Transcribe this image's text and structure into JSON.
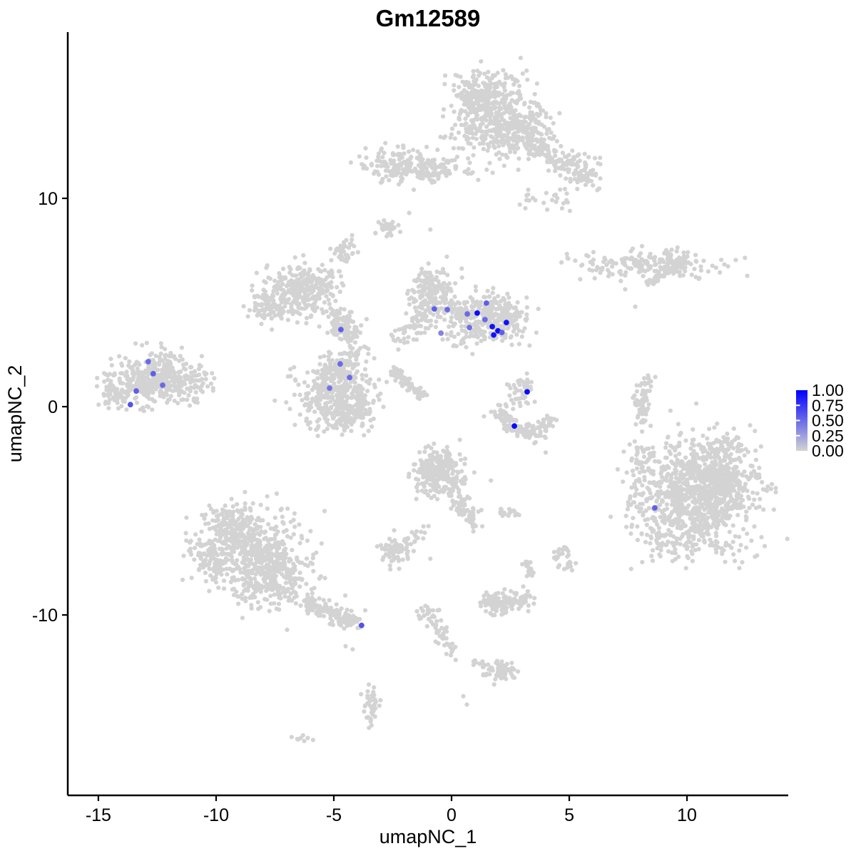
{
  "chart": {
    "title": "Gm12589",
    "xlabel": "umapNC_1",
    "ylabel": "umapNC_2",
    "x_ticks": [
      -15,
      -10,
      -5,
      0,
      5,
      10
    ],
    "y_ticks": [
      -10,
      0,
      10
    ],
    "x_range": [
      -16.3,
      14.3
    ],
    "y_range": [
      -18.66,
      17.98
    ],
    "grid": false,
    "legend_position": "right",
    "colors": {
      "point_low": "#D3D3D3",
      "point_high": "#0000FF",
      "axis": "#000000",
      "background": "#FFFFFF"
    },
    "legend": {
      "labels": [
        "1.00",
        "0.75",
        "0.50",
        "0.25",
        "0.00"
      ],
      "tick_values": [
        0.25,
        0.5,
        0.75
      ],
      "low_color": "#D3D3D3",
      "high_color": "#0000FF"
    },
    "chart_data": {
      "type": "scatter",
      "description": "UMAP feature plot of Gm12589 expression; grey background cells generated from cluster blobs, expressing cells listed explicitly with expression value 0-1",
      "seed": 42,
      "clusters": [
        {
          "name": "top-main",
          "type": "gauss",
          "x": 1.8,
          "y": 14.0,
          "sx": 1.0,
          "sy": 0.95,
          "n": 400
        },
        {
          "name": "top-main-upper",
          "type": "gauss",
          "x": 1.1,
          "y": 14.9,
          "sx": 0.55,
          "sy": 0.5,
          "n": 130
        },
        {
          "name": "top-main-lower",
          "type": "gauss",
          "x": 2.9,
          "y": 13.1,
          "sx": 0.65,
          "sy": 0.55,
          "n": 130
        },
        {
          "name": "top-arm",
          "type": "line",
          "x1": 3.3,
          "y1": 12.7,
          "x2": 4.8,
          "y2": 11.7,
          "s": 0.3,
          "n": 90
        },
        {
          "name": "top-arm-clump",
          "type": "gauss",
          "x": 5.5,
          "y": 11.3,
          "sx": 0.45,
          "sy": 0.45,
          "n": 80
        },
        {
          "name": "top-arm-trail",
          "type": "gauss",
          "x": 4.6,
          "y": 10.0,
          "sx": 0.35,
          "sy": 0.3,
          "n": 16
        },
        {
          "name": "top-arm-trail2",
          "type": "gauss",
          "x": 3.3,
          "y": 10.0,
          "sx": 0.2,
          "sy": 0.2,
          "n": 8
        },
        {
          "name": "topleft",
          "type": "gauss",
          "x": -2.0,
          "y": 11.6,
          "sx": 0.95,
          "sy": 0.4,
          "n": 170
        },
        {
          "name": "topleft-tail",
          "type": "gauss",
          "x": -0.5,
          "y": 11.25,
          "sx": 0.45,
          "sy": 0.22,
          "n": 35
        },
        {
          "name": "topleft-bridge",
          "type": "gauss",
          "x": 0.5,
          "y": 11.4,
          "sx": 0.4,
          "sy": 0.2,
          "n": 10
        },
        {
          "name": "comma-blob",
          "type": "gauss",
          "x": -2.8,
          "y": 8.6,
          "sx": 0.28,
          "sy": 0.22,
          "n": 30
        },
        {
          "name": "small-blob-upperleft",
          "type": "gauss",
          "x": -4.6,
          "y": 7.4,
          "sx": 0.22,
          "sy": 0.33,
          "n": 45
        },
        {
          "name": "midleft",
          "type": "gauss",
          "x": -6.6,
          "y": 5.5,
          "sx": 0.8,
          "sy": 0.6,
          "n": 240
        },
        {
          "name": "midleft-arm-right",
          "type": "gauss",
          "x": -5.5,
          "y": 5.9,
          "sx": 0.45,
          "sy": 0.35,
          "n": 60
        },
        {
          "name": "midleft-arm-left",
          "type": "gauss",
          "x": -7.8,
          "y": 4.7,
          "sx": 0.45,
          "sy": 0.35,
          "n": 60
        },
        {
          "name": "branch",
          "type": "line",
          "x1": -5.0,
          "y1": 4.5,
          "x2": -4.0,
          "y2": 2.7,
          "s": 0.3,
          "n": 100
        },
        {
          "name": "branch-clump",
          "type": "gauss",
          "x": -4.5,
          "y": 3.9,
          "sx": 0.3,
          "sy": 0.3,
          "n": 45
        },
        {
          "name": "band-chain",
          "type": "line",
          "x1": -2.3,
          "y1": 3.3,
          "x2": -1.0,
          "y2": 4.5,
          "s": 0.25,
          "n": 60
        },
        {
          "name": "band-round",
          "type": "gauss",
          "x": -0.85,
          "y": 5.5,
          "sx": 0.45,
          "sy": 0.55,
          "n": 170
        },
        {
          "name": "band-dense",
          "type": "gauss",
          "x": 1.8,
          "y": 4.2,
          "sx": 0.7,
          "sy": 0.55,
          "n": 280
        },
        {
          "name": "band-bridge",
          "type": "gauss",
          "x": 0.4,
          "y": 4.5,
          "sx": 0.45,
          "sy": 0.35,
          "n": 70
        },
        {
          "name": "band-below",
          "type": "gauss",
          "x": 0.3,
          "y": 3.3,
          "sx": 0.6,
          "sy": 0.3,
          "n": 25
        },
        {
          "name": "diag-streak",
          "type": "line",
          "x1": -2.55,
          "y1": 1.85,
          "x2": -1.25,
          "y2": 0.45,
          "s": 0.13,
          "n": 90
        },
        {
          "name": "center-left",
          "type": "gauss",
          "x": -5.0,
          "y": 0.6,
          "sx": 0.8,
          "sy": 0.75,
          "n": 330
        },
        {
          "name": "center-left-sub",
          "type": "gauss",
          "x": -4.5,
          "y": -0.5,
          "sx": 0.5,
          "sy": 0.4,
          "n": 80
        },
        {
          "name": "center-left-top",
          "type": "gauss",
          "x": -4.8,
          "y": 1.8,
          "sx": 0.4,
          "sy": 0.3,
          "n": 50
        },
        {
          "name": "center-left-east",
          "type": "gauss",
          "x": -4.0,
          "y": 0.2,
          "sx": 0.4,
          "sy": 0.5,
          "n": 60
        },
        {
          "name": "small-upper-mid",
          "type": "gauss",
          "x": 3.0,
          "y": 0.8,
          "sx": 0.3,
          "sy": 0.35,
          "n": 45
        },
        {
          "name": "crescent-1",
          "type": "line",
          "x1": 1.95,
          "y1": -0.25,
          "x2": 2.7,
          "y2": -1.1,
          "s": 0.18,
          "n": 50
        },
        {
          "name": "crescent-2",
          "type": "line",
          "x1": 2.7,
          "y1": -1.1,
          "x2": 3.6,
          "y2": -1.2,
          "s": 0.18,
          "n": 45
        },
        {
          "name": "crescent-3",
          "type": "line",
          "x1": 3.6,
          "y1": -1.2,
          "x2": 4.35,
          "y2": -0.55,
          "s": 0.18,
          "n": 40
        },
        {
          "name": "crescent-sparse",
          "type": "gauss",
          "x": 2.2,
          "y": -0.1,
          "sx": 0.3,
          "sy": 0.25,
          "n": 10
        },
        {
          "name": "far-left-main",
          "type": "gauss",
          "x": -12.7,
          "y": 1.3,
          "sx": 0.95,
          "sy": 0.6,
          "n": 360
        },
        {
          "name": "far-left-east-sparse",
          "type": "gauss",
          "x": -10.9,
          "y": 1.1,
          "sx": 0.55,
          "sy": 0.45,
          "n": 50
        },
        {
          "name": "far-left-top-dots",
          "type": "gauss",
          "x": -12.0,
          "y": 2.5,
          "sx": 0.35,
          "sy": 0.25,
          "n": 14
        },
        {
          "name": "far-left-edge",
          "type": "gauss",
          "x": -14.2,
          "y": 0.6,
          "sx": 0.35,
          "sy": 0.3,
          "n": 40
        },
        {
          "name": "right-elongated",
          "type": "gauss",
          "x": 8.2,
          "y": 6.8,
          "sx": 1.5,
          "sy": 0.33,
          "n": 170
        },
        {
          "name": "right-elongated-clump",
          "type": "gauss",
          "x": 9.3,
          "y": 6.9,
          "sx": 0.4,
          "sy": 0.35,
          "n": 60
        },
        {
          "name": "right-elongated-arm",
          "type": "line",
          "x1": 8.3,
          "y1": 5.9,
          "x2": 8.9,
          "y2": 6.3,
          "s": 0.12,
          "n": 25
        },
        {
          "name": "right-crescent-1",
          "type": "line",
          "x1": 8.35,
          "y1": 1.35,
          "x2": 8.0,
          "y2": 0.2,
          "s": 0.15,
          "n": 35
        },
        {
          "name": "right-crescent-2",
          "type": "line",
          "x1": 8.0,
          "y1": 0.2,
          "x2": 8.15,
          "y2": -1.0,
          "s": 0.15,
          "n": 30
        },
        {
          "name": "right-crescent-dots",
          "type": "gauss",
          "x": 8.05,
          "y": -2.1,
          "sx": 0.2,
          "sy": 0.2,
          "n": 8
        },
        {
          "name": "right-main",
          "type": "gauss",
          "x": 10.6,
          "y": -4.4,
          "sx": 1.25,
          "sy": 1.3,
          "n": 820
        },
        {
          "name": "right-core",
          "type": "gauss",
          "x": 11.2,
          "y": -3.4,
          "sx": 0.75,
          "sy": 0.65,
          "n": 260
        },
        {
          "name": "right-top-arm",
          "type": "gauss",
          "x": 11.5,
          "y": -2.0,
          "sx": 0.6,
          "sy": 0.35,
          "n": 70
        },
        {
          "name": "right-west-sparse",
          "type": "gauss",
          "x": 8.4,
          "y": -3.8,
          "sx": 0.5,
          "sy": 1.0,
          "n": 80
        },
        {
          "name": "right-bottom-sparse",
          "type": "gauss",
          "x": 9.3,
          "y": -6.4,
          "sx": 0.6,
          "sy": 0.4,
          "n": 50
        },
        {
          "name": "botleft-body1",
          "type": "gauss",
          "x": -8.7,
          "y": -6.6,
          "sx": 1.05,
          "sy": 0.85,
          "n": 400
        },
        {
          "name": "botleft-body2",
          "type": "gauss",
          "x": -7.7,
          "y": -8.2,
          "sx": 0.95,
          "sy": 0.75,
          "n": 330
        },
        {
          "name": "botleft-top",
          "type": "gauss",
          "x": -9.4,
          "y": -5.6,
          "sx": 0.5,
          "sy": 0.4,
          "n": 80
        },
        {
          "name": "botleft-west",
          "type": "gauss",
          "x": -10.3,
          "y": -7.4,
          "sx": 0.45,
          "sy": 0.6,
          "n": 70
        },
        {
          "name": "botleft-tail",
          "type": "line",
          "x1": -6.2,
          "y1": -9.4,
          "x2": -4.05,
          "y2": -10.45,
          "s": 0.22,
          "n": 120
        },
        {
          "name": "botleft-tip",
          "type": "gauss",
          "x": -4.35,
          "y": -10.3,
          "sx": 0.18,
          "sy": 0.15,
          "n": 25
        },
        {
          "name": "pear-main",
          "type": "gauss",
          "x": -0.5,
          "y": -3.3,
          "sx": 0.55,
          "sy": 0.55,
          "n": 210
        },
        {
          "name": "pear-top",
          "type": "gauss",
          "x": -0.8,
          "y": -2.8,
          "sx": 0.4,
          "sy": 0.3,
          "n": 70
        },
        {
          "name": "pear-tail",
          "type": "line",
          "x1": 0.1,
          "y1": -4.2,
          "x2": 1.0,
          "y2": -5.6,
          "s": 0.2,
          "n": 60
        },
        {
          "name": "chain-sw",
          "type": "line",
          "x1": -1.1,
          "y1": -5.9,
          "x2": -2.1,
          "y2": -6.6,
          "s": 0.15,
          "n": 20
        },
        {
          "name": "chain-sw-blob",
          "type": "gauss",
          "x": -2.45,
          "y": -7.0,
          "sx": 0.35,
          "sy": 0.3,
          "n": 70
        },
        {
          "name": "small-pair-a",
          "type": "gauss",
          "x": 2.2,
          "y": -5.05,
          "sx": 0.15,
          "sy": 0.12,
          "n": 12
        },
        {
          "name": "small-pair-b",
          "type": "gauss",
          "x": 2.75,
          "y": -5.1,
          "sx": 0.12,
          "sy": 0.1,
          "n": 8
        },
        {
          "name": "small-east-1",
          "type": "gauss",
          "x": 4.65,
          "y": -7.0,
          "sx": 0.2,
          "sy": 0.18,
          "n": 18
        },
        {
          "name": "small-east-2",
          "type": "gauss",
          "x": 5.0,
          "y": -7.6,
          "sx": 0.18,
          "sy": 0.16,
          "n": 14
        },
        {
          "name": "vert-pair-1",
          "type": "gauss",
          "x": 3.2,
          "y": -7.5,
          "sx": 0.12,
          "sy": 0.14,
          "n": 10
        },
        {
          "name": "vert-pair-2",
          "type": "gauss",
          "x": 3.3,
          "y": -8.0,
          "sx": 0.12,
          "sy": 0.12,
          "n": 10
        },
        {
          "name": "bottom-mid",
          "type": "gauss",
          "x": 2.3,
          "y": -9.4,
          "sx": 0.45,
          "sy": 0.3,
          "n": 90
        },
        {
          "name": "bottom-mid-left",
          "type": "gauss",
          "x": 1.75,
          "y": -9.5,
          "sx": 0.25,
          "sy": 0.25,
          "n": 40
        },
        {
          "name": "bottom-mid-right",
          "type": "gauss",
          "x": 3.05,
          "y": -9.3,
          "sx": 0.2,
          "sy": 0.2,
          "n": 25
        },
        {
          "name": "chain-down-1",
          "type": "line",
          "x1": -0.9,
          "y1": -10.1,
          "x2": -0.3,
          "y2": -11.3,
          "s": 0.18,
          "n": 25
        },
        {
          "name": "chain-down-2",
          "type": "line",
          "x1": -0.3,
          "y1": -11.3,
          "x2": 0.15,
          "y2": -12.2,
          "s": 0.15,
          "n": 15
        },
        {
          "name": "chain-down-top",
          "type": "gauss",
          "x": -1.05,
          "y": -9.9,
          "sx": 0.2,
          "sy": 0.2,
          "n": 20
        },
        {
          "name": "bottom-blob",
          "type": "gauss",
          "x": 2.1,
          "y": -12.7,
          "sx": 0.35,
          "sy": 0.25,
          "n": 60
        },
        {
          "name": "bottom-blob-arm",
          "type": "line",
          "x1": 1.0,
          "y1": -12.25,
          "x2": 1.7,
          "y2": -12.5,
          "s": 0.1,
          "n": 12
        },
        {
          "name": "bottom-left-vert",
          "type": "gauss",
          "x": -3.45,
          "y": -14.5,
          "sx": 0.18,
          "sy": 0.55,
          "n": 40
        },
        {
          "name": "bottom-dash",
          "type": "gauss",
          "x": -6.3,
          "y": -15.9,
          "sx": 0.25,
          "sy": 0.08,
          "n": 8
        },
        {
          "name": "singles",
          "type": "dots",
          "pts": [
            [
              7.8,
              4.8
            ],
            [
              4.0,
              -2.2
            ],
            [
              -0.9,
              -7.3
            ],
            [
              0.5,
              -13.9
            ],
            [
              0.65,
              -14.3
            ],
            [
              3.3,
              9.9
            ],
            [
              2.9,
              9.7
            ],
            [
              -0.9,
              8.5
            ],
            [
              -0.2,
              7.2
            ],
            [
              -1.8,
              9.3
            ],
            [
              -4.5,
              -11.5
            ],
            [
              -4.2,
              -11.65
            ]
          ]
        }
      ],
      "expressing_cells": [
        {
          "x": -0.73,
          "y": 4.69,
          "value": 0.55
        },
        {
          "x": -0.18,
          "y": 4.66,
          "value": 0.5
        },
        {
          "x": 0.67,
          "y": 4.45,
          "value": 0.5
        },
        {
          "x": 1.09,
          "y": 4.49,
          "value": 0.95
        },
        {
          "x": 1.48,
          "y": 4.97,
          "value": 0.55
        },
        {
          "x": 1.42,
          "y": 4.18,
          "value": 0.5
        },
        {
          "x": 1.73,
          "y": 3.84,
          "value": 0.92
        },
        {
          "x": 1.97,
          "y": 3.64,
          "value": 0.95
        },
        {
          "x": 2.14,
          "y": 3.56,
          "value": 0.55
        },
        {
          "x": 2.33,
          "y": 4.04,
          "value": 0.92
        },
        {
          "x": 1.79,
          "y": 3.44,
          "value": 0.92
        },
        {
          "x": 0.76,
          "y": 3.8,
          "value": 0.48
        },
        {
          "x": -0.45,
          "y": 3.53,
          "value": 0.38
        },
        {
          "x": -4.7,
          "y": 3.7,
          "value": 0.55
        },
        {
          "x": -4.73,
          "y": 2.05,
          "value": 0.5
        },
        {
          "x": -4.33,
          "y": 1.4,
          "value": 0.5
        },
        {
          "x": -5.18,
          "y": 0.89,
          "value": 0.45
        },
        {
          "x": -12.88,
          "y": 2.16,
          "value": 0.5
        },
        {
          "x": -12.67,
          "y": 1.58,
          "value": 0.55
        },
        {
          "x": -12.27,
          "y": 1.03,
          "value": 0.5
        },
        {
          "x": -13.39,
          "y": 0.75,
          "value": 0.55
        },
        {
          "x": -13.64,
          "y": 0.1,
          "value": 0.6
        },
        {
          "x": 3.21,
          "y": 0.71,
          "value": 0.95
        },
        {
          "x": 2.67,
          "y": -0.93,
          "value": 0.95
        },
        {
          "x": -3.82,
          "y": -10.5,
          "value": 0.6
        },
        {
          "x": 8.63,
          "y": -4.86,
          "value": 0.55
        }
      ]
    }
  }
}
